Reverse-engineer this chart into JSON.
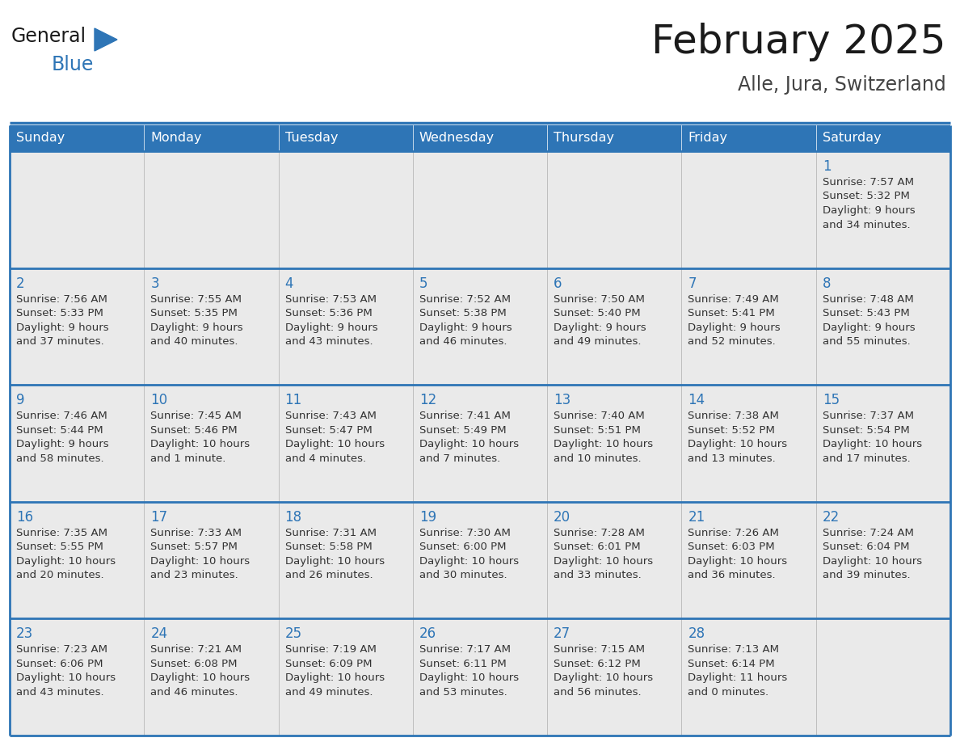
{
  "title": "February 2025",
  "subtitle": "Alle, Jura, Switzerland",
  "days_of_week": [
    "Sunday",
    "Monday",
    "Tuesday",
    "Wednesday",
    "Thursday",
    "Friday",
    "Saturday"
  ],
  "header_bg": "#2E75B6",
  "header_text": "#FFFFFF",
  "cell_bg": "#EAEAEA",
  "cell_bg_empty": "#FFFFFF",
  "border_color": "#2E75B6",
  "row_line_color": "#2E75B6",
  "text_color": "#333333",
  "day_num_color": "#2E75B6",
  "title_color": "#1a1a1a",
  "subtitle_color": "#444444",
  "logo_general_color": "#1a1a1a",
  "logo_blue_color": "#2E75B6",
  "calendar_data": [
    [
      null,
      null,
      null,
      null,
      null,
      null,
      {
        "day": "1",
        "sunrise": "7:57 AM",
        "sunset": "5:32 PM",
        "daylight1": "9 hours",
        "daylight2": "and 34 minutes."
      }
    ],
    [
      {
        "day": "2",
        "sunrise": "7:56 AM",
        "sunset": "5:33 PM",
        "daylight1": "9 hours",
        "daylight2": "and 37 minutes."
      },
      {
        "day": "3",
        "sunrise": "7:55 AM",
        "sunset": "5:35 PM",
        "daylight1": "9 hours",
        "daylight2": "and 40 minutes."
      },
      {
        "day": "4",
        "sunrise": "7:53 AM",
        "sunset": "5:36 PM",
        "daylight1": "9 hours",
        "daylight2": "and 43 minutes."
      },
      {
        "day": "5",
        "sunrise": "7:52 AM",
        "sunset": "5:38 PM",
        "daylight1": "9 hours",
        "daylight2": "and 46 minutes."
      },
      {
        "day": "6",
        "sunrise": "7:50 AM",
        "sunset": "5:40 PM",
        "daylight1": "9 hours",
        "daylight2": "and 49 minutes."
      },
      {
        "day": "7",
        "sunrise": "7:49 AM",
        "sunset": "5:41 PM",
        "daylight1": "9 hours",
        "daylight2": "and 52 minutes."
      },
      {
        "day": "8",
        "sunrise": "7:48 AM",
        "sunset": "5:43 PM",
        "daylight1": "9 hours",
        "daylight2": "and 55 minutes."
      }
    ],
    [
      {
        "day": "9",
        "sunrise": "7:46 AM",
        "sunset": "5:44 PM",
        "daylight1": "9 hours",
        "daylight2": "and 58 minutes."
      },
      {
        "day": "10",
        "sunrise": "7:45 AM",
        "sunset": "5:46 PM",
        "daylight1": "10 hours",
        "daylight2": "and 1 minute."
      },
      {
        "day": "11",
        "sunrise": "7:43 AM",
        "sunset": "5:47 PM",
        "daylight1": "10 hours",
        "daylight2": "and 4 minutes."
      },
      {
        "day": "12",
        "sunrise": "7:41 AM",
        "sunset": "5:49 PM",
        "daylight1": "10 hours",
        "daylight2": "and 7 minutes."
      },
      {
        "day": "13",
        "sunrise": "7:40 AM",
        "sunset": "5:51 PM",
        "daylight1": "10 hours",
        "daylight2": "and 10 minutes."
      },
      {
        "day": "14",
        "sunrise": "7:38 AM",
        "sunset": "5:52 PM",
        "daylight1": "10 hours",
        "daylight2": "and 13 minutes."
      },
      {
        "day": "15",
        "sunrise": "7:37 AM",
        "sunset": "5:54 PM",
        "daylight1": "10 hours",
        "daylight2": "and 17 minutes."
      }
    ],
    [
      {
        "day": "16",
        "sunrise": "7:35 AM",
        "sunset": "5:55 PM",
        "daylight1": "10 hours",
        "daylight2": "and 20 minutes."
      },
      {
        "day": "17",
        "sunrise": "7:33 AM",
        "sunset": "5:57 PM",
        "daylight1": "10 hours",
        "daylight2": "and 23 minutes."
      },
      {
        "day": "18",
        "sunrise": "7:31 AM",
        "sunset": "5:58 PM",
        "daylight1": "10 hours",
        "daylight2": "and 26 minutes."
      },
      {
        "day": "19",
        "sunrise": "7:30 AM",
        "sunset": "6:00 PM",
        "daylight1": "10 hours",
        "daylight2": "and 30 minutes."
      },
      {
        "day": "20",
        "sunrise": "7:28 AM",
        "sunset": "6:01 PM",
        "daylight1": "10 hours",
        "daylight2": "and 33 minutes."
      },
      {
        "day": "21",
        "sunrise": "7:26 AM",
        "sunset": "6:03 PM",
        "daylight1": "10 hours",
        "daylight2": "and 36 minutes."
      },
      {
        "day": "22",
        "sunrise": "7:24 AM",
        "sunset": "6:04 PM",
        "daylight1": "10 hours",
        "daylight2": "and 39 minutes."
      }
    ],
    [
      {
        "day": "23",
        "sunrise": "7:23 AM",
        "sunset": "6:06 PM",
        "daylight1": "10 hours",
        "daylight2": "and 43 minutes."
      },
      {
        "day": "24",
        "sunrise": "7:21 AM",
        "sunset": "6:08 PM",
        "daylight1": "10 hours",
        "daylight2": "and 46 minutes."
      },
      {
        "day": "25",
        "sunrise": "7:19 AM",
        "sunset": "6:09 PM",
        "daylight1": "10 hours",
        "daylight2": "and 49 minutes."
      },
      {
        "day": "26",
        "sunrise": "7:17 AM",
        "sunset": "6:11 PM",
        "daylight1": "10 hours",
        "daylight2": "and 53 minutes."
      },
      {
        "day": "27",
        "sunrise": "7:15 AM",
        "sunset": "6:12 PM",
        "daylight1": "10 hours",
        "daylight2": "and 56 minutes."
      },
      {
        "day": "28",
        "sunrise": "7:13 AM",
        "sunset": "6:14 PM",
        "daylight1": "11 hours",
        "daylight2": "and 0 minutes."
      },
      null
    ]
  ]
}
